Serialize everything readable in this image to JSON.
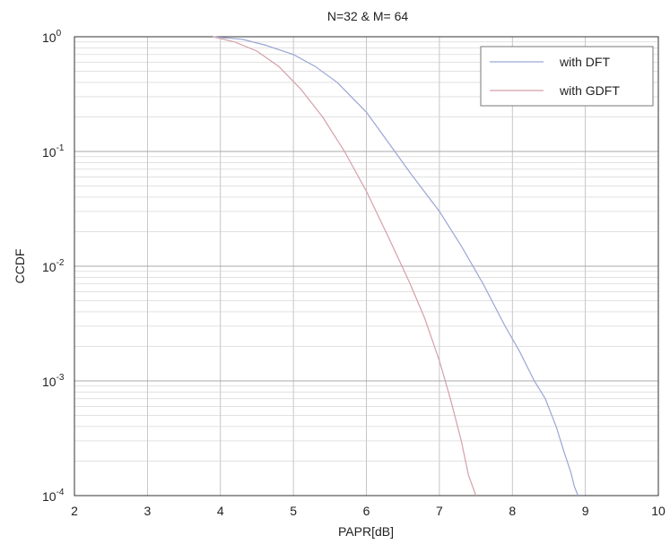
{
  "chart_data": {
    "type": "line",
    "title": "N=32 & M= 64",
    "xlabel": "PAPR[dB]",
    "ylabel": "CCDF",
    "xlim": [
      2,
      10
    ],
    "ylim": [
      0.0001,
      1
    ],
    "yscale": "log",
    "grid": true,
    "x_ticks": [
      "2",
      "3",
      "4",
      "5",
      "6",
      "7",
      "8",
      "9",
      "10"
    ],
    "y_ticks": [
      {
        "base": "10",
        "exp": "0"
      },
      {
        "base": "10",
        "exp": "-1"
      },
      {
        "base": "10",
        "exp": "-2"
      },
      {
        "base": "10",
        "exp": "-3"
      },
      {
        "base": "10",
        "exp": "-4"
      }
    ],
    "legend_position": "top-right",
    "series": [
      {
        "name": "with DFT",
        "color": "#9aa6d4",
        "x": [
          3.9,
          4.3,
          4.6,
          5.0,
          5.3,
          5.6,
          6.0,
          6.3,
          6.6,
          7.0,
          7.3,
          7.6,
          7.9,
          8.1,
          8.3,
          8.45,
          8.6,
          8.7,
          8.8,
          8.85,
          8.9
        ],
        "y": [
          1.0,
          0.95,
          0.85,
          0.7,
          0.55,
          0.4,
          0.22,
          0.12,
          0.065,
          0.03,
          0.015,
          0.007,
          0.003,
          0.0018,
          0.001,
          0.0007,
          0.0004,
          0.00025,
          0.00016,
          0.00012,
          0.0001
        ]
      },
      {
        "name": "with GDFT",
        "color": "#d4a0a8",
        "x": [
          3.9,
          4.2,
          4.5,
          4.8,
          5.1,
          5.4,
          5.7,
          6.0,
          6.3,
          6.6,
          6.8,
          7.0,
          7.15,
          7.3,
          7.4,
          7.5
        ],
        "y": [
          1.0,
          0.9,
          0.75,
          0.55,
          0.35,
          0.2,
          0.1,
          0.045,
          0.018,
          0.007,
          0.0035,
          0.0015,
          0.0007,
          0.0003,
          0.00015,
          0.0001
        ]
      }
    ]
  }
}
